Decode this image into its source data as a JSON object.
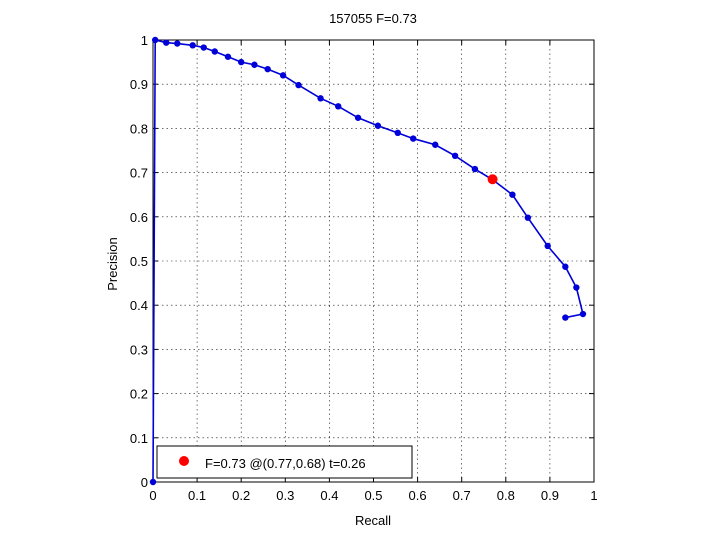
{
  "chart_data": {
    "type": "line",
    "title": "157055 F=0.73",
    "xlabel": "Recall",
    "ylabel": "Precision",
    "xlim": [
      0,
      1
    ],
    "ylim": [
      0,
      1
    ],
    "xticks": [
      "0",
      "0.1",
      "0.2",
      "0.3",
      "0.4",
      "0.5",
      "0.6",
      "0.7",
      "0.8",
      "0.9",
      "1"
    ],
    "yticks": [
      "0",
      "0.1",
      "0.2",
      "0.3",
      "0.4",
      "0.5",
      "0.6",
      "0.7",
      "0.8",
      "0.9",
      "1"
    ],
    "grid": true,
    "series": [
      {
        "color": "#0000d8",
        "points": [
          [
            0.0,
            0.0
          ],
          [
            0.005,
            1.0
          ],
          [
            0.03,
            0.994
          ],
          [
            0.055,
            0.992
          ],
          [
            0.09,
            0.988
          ],
          [
            0.115,
            0.983
          ],
          [
            0.14,
            0.974
          ],
          [
            0.17,
            0.962
          ],
          [
            0.2,
            0.95
          ],
          [
            0.23,
            0.944
          ],
          [
            0.26,
            0.934
          ],
          [
            0.295,
            0.92
          ],
          [
            0.33,
            0.898
          ],
          [
            0.38,
            0.868
          ],
          [
            0.42,
            0.85
          ],
          [
            0.465,
            0.824
          ],
          [
            0.51,
            0.806
          ],
          [
            0.555,
            0.79
          ],
          [
            0.59,
            0.777
          ],
          [
            0.64,
            0.763
          ],
          [
            0.685,
            0.738
          ],
          [
            0.73,
            0.708
          ],
          [
            0.77,
            0.684
          ],
          [
            0.815,
            0.65
          ],
          [
            0.85,
            0.598
          ],
          [
            0.895,
            0.534
          ],
          [
            0.935,
            0.487
          ],
          [
            0.96,
            0.44
          ],
          [
            0.975,
            0.38
          ],
          [
            0.935,
            0.372
          ]
        ]
      }
    ],
    "best_point": {
      "x": 0.77,
      "y": 0.685,
      "color": "#ff0000"
    },
    "legend": {
      "position": "bottom-left",
      "label": "F=0.73 @(0.77,0.68) t=0.26"
    }
  }
}
